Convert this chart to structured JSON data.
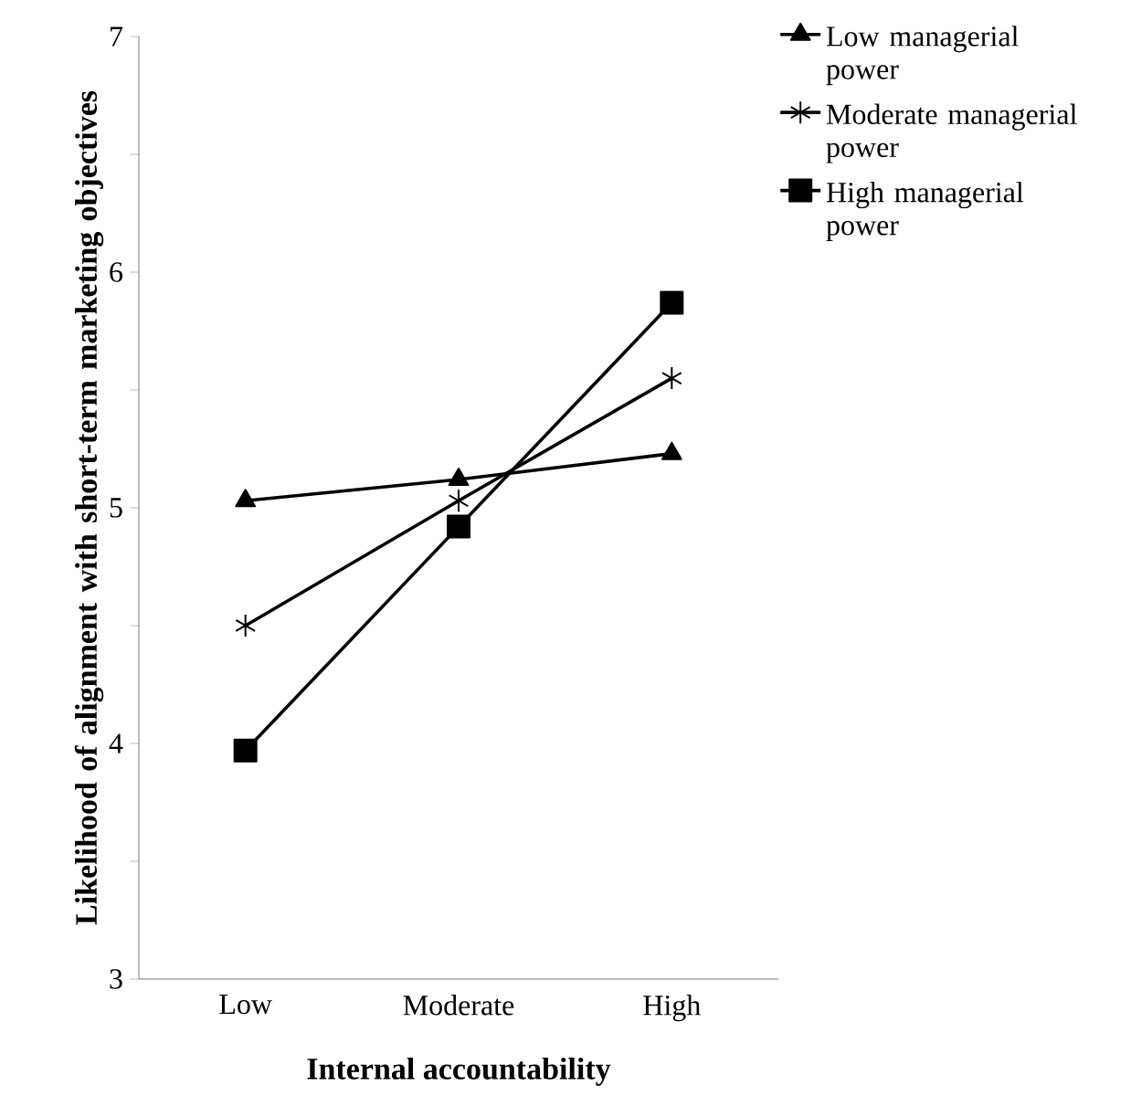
{
  "chart_data": {
    "type": "line",
    "xlabel": "Internal accountability",
    "ylabel": "Likelihood of alignment with short-term marketing objectives",
    "categories": [
      "Low",
      "Moderate",
      "High"
    ],
    "series": [
      {
        "name": "Low managerial power",
        "color": "#000000",
        "marker": "triangle",
        "values": [
          5.03,
          5.12,
          5.23
        ]
      },
      {
        "name": "Moderate managerial power",
        "color": "#000000",
        "marker": "cross",
        "values": [
          4.5,
          5.03,
          5.55
        ]
      },
      {
        "name": "High managerial power",
        "color": "#000000",
        "marker": "square",
        "values": [
          3.97,
          4.92,
          5.87
        ]
      }
    ],
    "ylim": [
      3,
      7
    ],
    "yticks": [
      3,
      {
        "value": 3.5,
        "label": null
      },
      4,
      {
        "value": 4.5,
        "label": null
      },
      5,
      {
        "value": 5.5,
        "label": null
      },
      6,
      {
        "value": 6.5,
        "label": null
      },
      7
    ],
    "grid": false,
    "legend": "top right",
    "line_style": "solid"
  }
}
